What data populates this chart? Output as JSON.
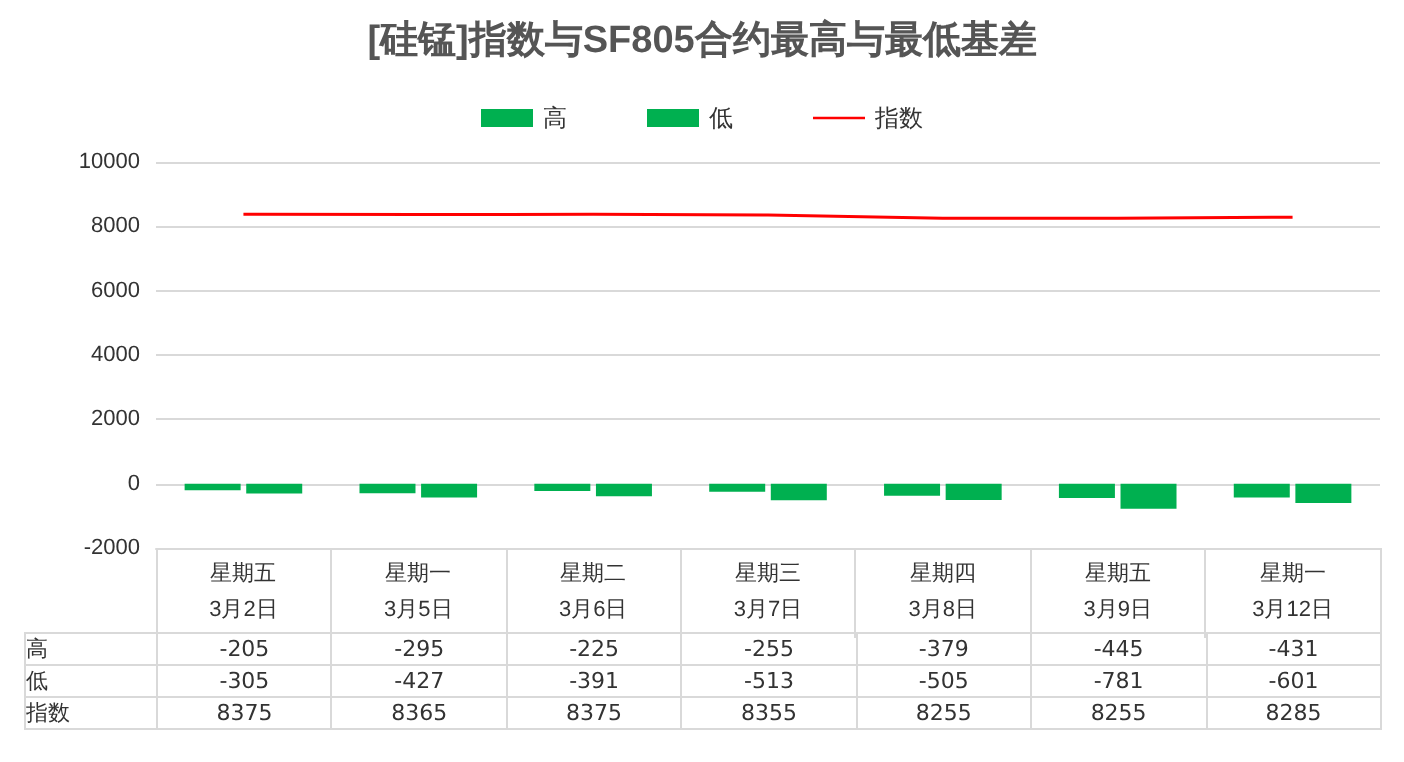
{
  "chart_data": {
    "type": "bar",
    "title": "[硅锰]指数与SF805合约最高与最低基差",
    "categories": [
      "星期五\n3月2日",
      "星期一\n3月5日",
      "星期二\n3月6日",
      "星期三\n3月7日",
      "星期四\n3月8日",
      "星期五\n3月9日",
      "星期一\n3月12日"
    ],
    "series": [
      {
        "name": "高",
        "color": "#00b050",
        "values": [
          -205,
          -295,
          -225,
          -255,
          -379,
          -445,
          -431
        ]
      },
      {
        "name": "低",
        "color": "#00b050",
        "values": [
          -305,
          -427,
          -391,
          -513,
          -505,
          -781,
          -601
        ]
      },
      {
        "name": "指数",
        "type": "line",
        "color": "#ff0000",
        "marker": "none",
        "values": [
          8375,
          8365,
          8375,
          8355,
          8255,
          8255,
          8285
        ]
      }
    ],
    "ylim": [
      -2000,
      10000
    ],
    "yticks": [
      -2000,
      0,
      2000,
      4000,
      6000,
      8000,
      10000
    ],
    "grid": "y",
    "legend": "top",
    "data_labels": true
  }
}
